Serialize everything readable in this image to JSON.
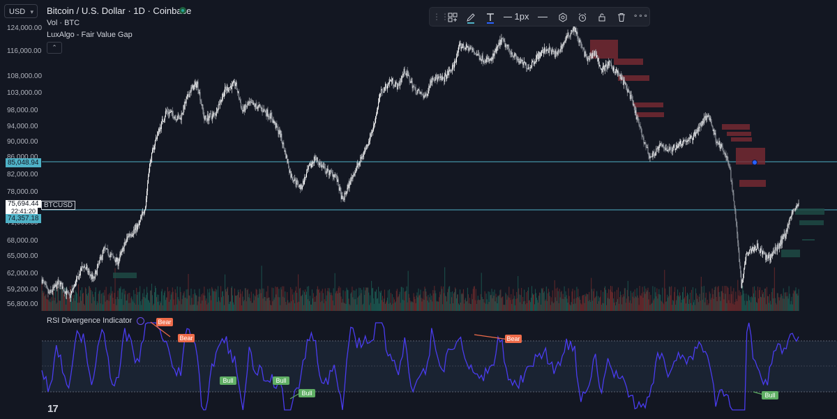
{
  "header": {
    "currency": "USD",
    "symbol_title": "Bitcoin / U.S. Dollar · 1D · Coinbase",
    "volume_label": "Vol · BTC",
    "indicator_label": "LuxAlgo - Fair Value Gap"
  },
  "toolbar": {
    "line_width_label": "1px"
  },
  "price_axis": {
    "labels": [
      "124,000.00",
      "116,000.00",
      "108,000.00",
      "103,000.00",
      "98,000.00",
      "94,000.00",
      "90,000.00",
      "86,000.00",
      "82,000.00",
      "78,000.00",
      "71,000.00",
      "68,000.00",
      "65,000.00",
      "62,000.00",
      "59,200.00",
      "56,800.00"
    ],
    "values": [
      124000,
      116000,
      108000,
      103000,
      98000,
      94000,
      90000,
      86000,
      82000,
      78000,
      71000,
      68000,
      65000,
      62000,
      59200,
      56800
    ],
    "hline_tag": "85,048.94",
    "hline_value": 85048.94,
    "current_price": "75,694.44",
    "current_value": 75694.44,
    "countdown": "22:41:20",
    "symbol_tag": "BTCUSD",
    "lower_tag": "74,357.18",
    "lower_value": 74357.18
  },
  "rsi_indicator": {
    "title": "RSI Divergence Indicator",
    "bear_label": "Bear",
    "bull_label": "Bull"
  },
  "colors": {
    "background": "#131722",
    "up": "#ffffff",
    "down": "#9ea3ab",
    "hline": "#4fb2c7",
    "fvg_bear": "#7a2a33",
    "fvg_bull": "#1f4a44",
    "rsi_line": "#4a3cf0",
    "bear_badge": "#ef6c4a",
    "bull_badge": "#5fae64",
    "accent": "#2962ff"
  },
  "icons": [
    "drag-handle-icon",
    "add-object-icon",
    "brush-icon",
    "text-icon",
    "line-style-icon",
    "settings-hex-icon",
    "alarm-add-icon",
    "lock-icon",
    "trash-icon",
    "more-icon",
    "bitcoin-live-dot-icon",
    "tradingview-logo-icon",
    "indicator-settings-icon",
    "collapse-chevron-icon"
  ]
}
